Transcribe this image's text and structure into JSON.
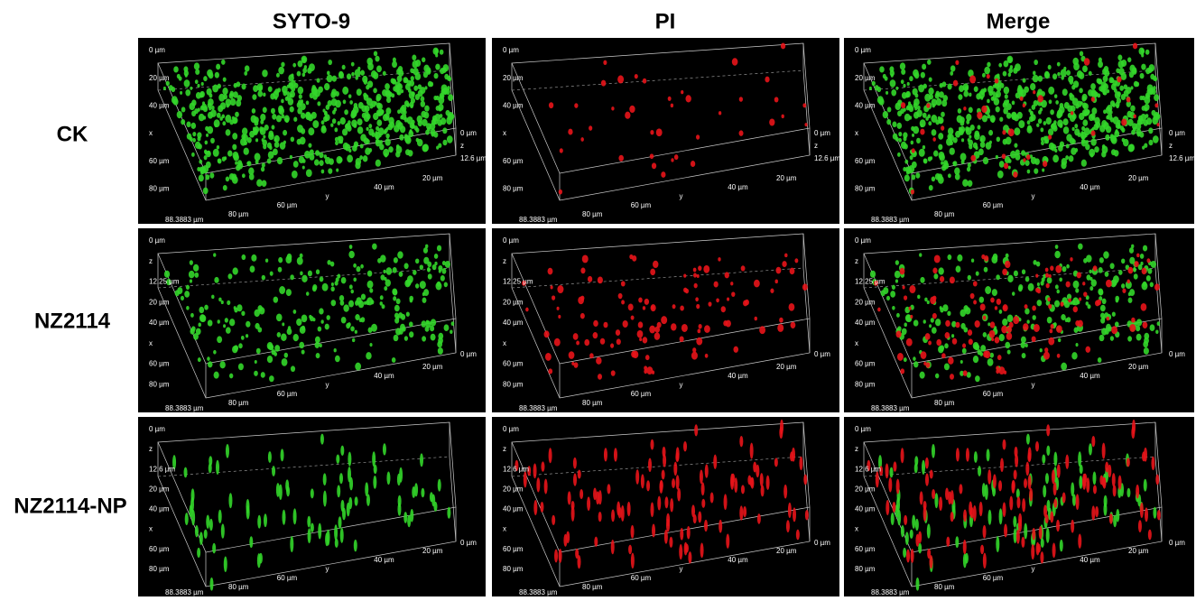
{
  "columns": [
    "SYTO-9",
    "PI",
    "Merge"
  ],
  "rows": [
    {
      "label": "CK",
      "left": [
        "0 µm",
        "20 µm",
        "40 µm",
        "x",
        "60 µm",
        "80 µm",
        "88.3883 µm"
      ],
      "bottom": [
        "80 µm",
        "60 µm",
        "y",
        "40 µm",
        "20 µm"
      ],
      "right": [
        "0 µm",
        "z",
        "12.6 µm"
      ]
    },
    {
      "label": "NZ2114",
      "left": [
        "0 µm",
        "z",
        "12.25 µm",
        "20 µm",
        "40 µm",
        "x",
        "60 µm",
        "80 µm",
        "88.3883 µm"
      ],
      "bottom": [
        "80 µm",
        "60 µm",
        "y",
        "40 µm",
        "20 µm"
      ],
      "right": [
        "0 µm"
      ]
    },
    {
      "label": "NZ2114-NP",
      "left": [
        "0 µm",
        "z",
        "12.6 µm",
        "20 µm",
        "40 µm",
        "x",
        "60 µm",
        "80 µm",
        "88.3883 µm"
      ],
      "bottom": [
        "80 µm",
        "60 µm",
        "y",
        "40 µm",
        "20 µm"
      ],
      "right": [
        "0 µm"
      ]
    }
  ]
}
